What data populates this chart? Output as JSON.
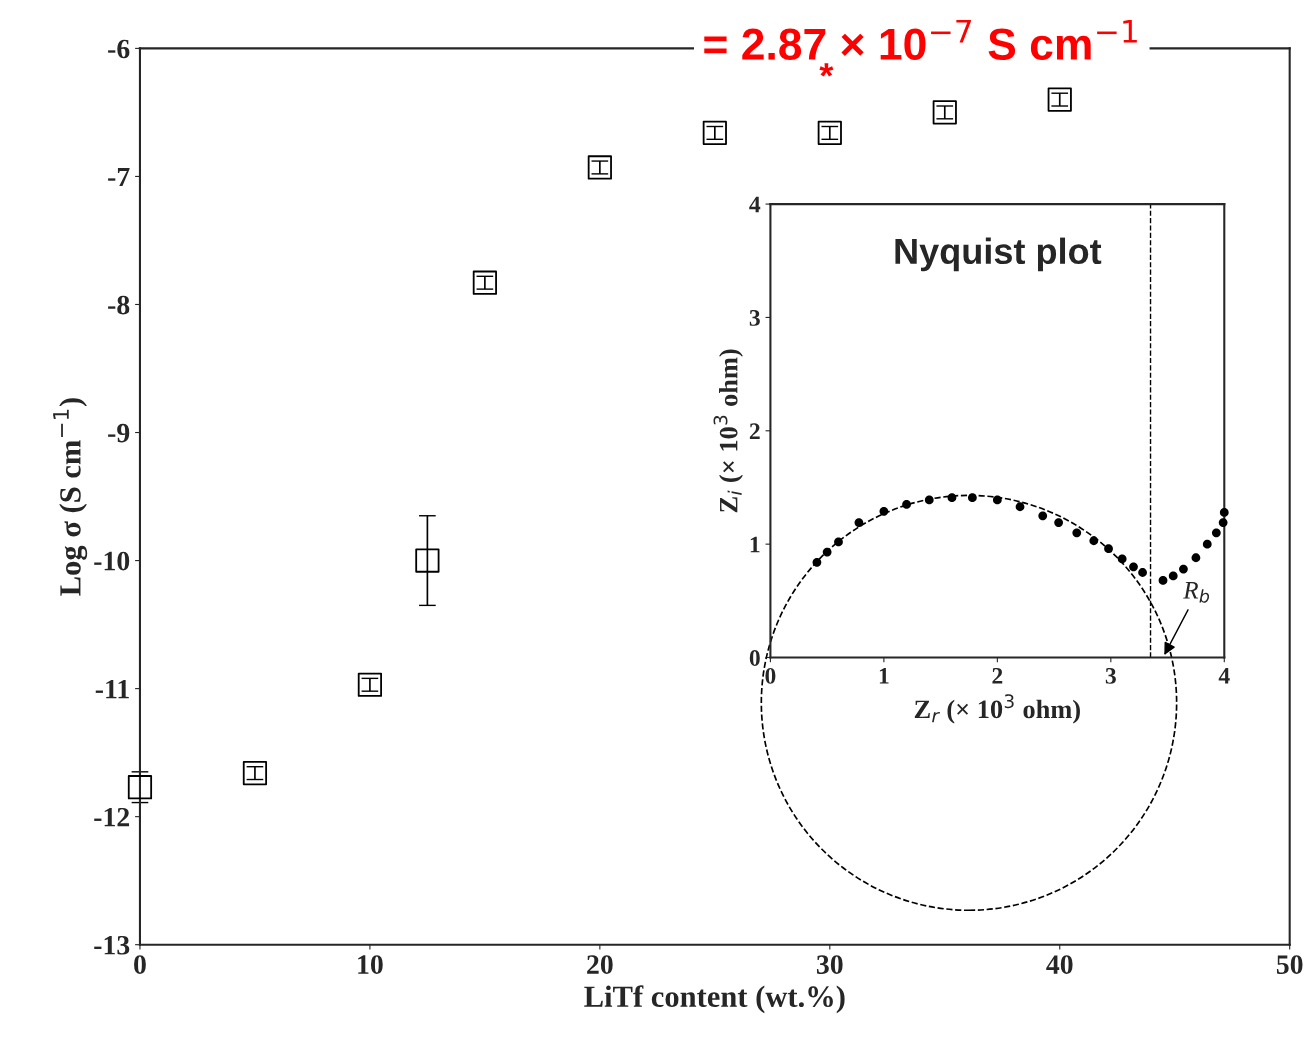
{
  "chart_data": [
    {
      "type": "scatter",
      "xlabel": "LiTf content (wt.%)",
      "ylabel": "Log σ (S cm$^{−1}$)",
      "annotations": [
        "= 2.87 × 10$^{−7}$ S cm$^{−1}$",
        "*"
      ],
      "series": [
        {
          "color": "#000000",
          "x": [
            0,
            5,
            10,
            12.5,
            15,
            20,
            25,
            30,
            35,
            40
          ],
          "values": [
            -11.77,
            -11.66,
            -10.97,
            -10.0,
            -7.83,
            -6.93,
            -6.66,
            -6.66,
            -6.5,
            -6.4
          ],
          "errors": [
            0.12,
            0.05,
            0.05,
            0.35,
            0.05,
            0.05,
            0.05,
            0.05,
            0.05,
            0.05
          ]
        }
      ],
      "marker": "square",
      "xlim": [
        0,
        50
      ],
      "xticks": [
        0,
        10,
        20,
        30,
        40,
        50
      ],
      "ylim": [
        -13,
        -6
      ],
      "yticks": [
        -13,
        -12,
        -11,
        -10,
        -9,
        -8,
        -7,
        -6
      ],
      "grid": false
    },
    {
      "type": "scatter",
      "title": "Nyquist plot",
      "xlabel": "Z$_{r}$ (× 10$^{3}$ ohm)",
      "ylabel": "Z$_{i}$ (× 10$^{3}$ ohm)",
      "series": [
        {
          "color": "#000000",
          "x": [
            0.41,
            0.5,
            0.6,
            0.78,
            1.0,
            1.2,
            1.4,
            1.6,
            1.78,
            2.0,
            2.2,
            2.4,
            2.54,
            2.7,
            2.85,
            2.98,
            3.1,
            3.2,
            3.28,
            3.46,
            3.55,
            3.64,
            3.75,
            3.85,
            3.93,
            3.99,
            4.0
          ],
          "values": [
            0.84,
            0.93,
            1.02,
            1.19,
            1.29,
            1.35,
            1.39,
            1.41,
            1.41,
            1.39,
            1.33,
            1.25,
            1.19,
            1.1,
            1.03,
            0.96,
            0.87,
            0.8,
            0.75,
            0.68,
            0.72,
            0.78,
            0.88,
            1.0,
            1.1,
            1.19,
            1.28
          ]
        }
      ],
      "marker": "circle",
      "xlim": [
        0,
        4
      ],
      "xticks": [
        0,
        1,
        2,
        3,
        4
      ],
      "ylim": [
        0,
        4
      ],
      "yticks": [
        0,
        1,
        2,
        3,
        4
      ],
      "ref_lines": [
        {
          "axis": "x",
          "value": 3.35,
          "line_style": "dashed",
          "color": "#000000"
        }
      ],
      "annotations": [
        "R$_{b}$"
      ],
      "grid": false
    }
  ]
}
